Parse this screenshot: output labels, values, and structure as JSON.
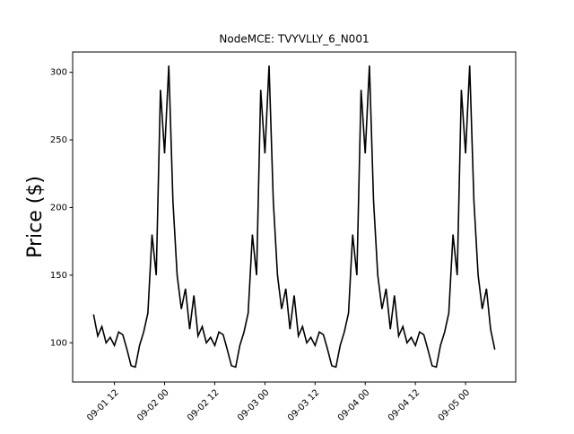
{
  "chart_data": {
    "type": "line",
    "title": "NodeMCE: TVYVLLY_6_N001",
    "y_label": "Price ($)",
    "x": [
      "09-01 07",
      "09-01 08",
      "09-01 09",
      "09-01 10",
      "09-01 11",
      "09-01 12",
      "09-01 13",
      "09-01 14",
      "09-01 15",
      "09-01 16",
      "09-01 17",
      "09-01 18",
      "09-01 19",
      "09-01 20",
      "09-01 21",
      "09-01 22",
      "09-01 23",
      "09-02 00",
      "09-02 01",
      "09-02 02",
      "09-02 03",
      "09-02 04",
      "09-02 05",
      "09-02 06",
      "09-02 07",
      "09-02 08",
      "09-02 09",
      "09-02 10",
      "09-02 11",
      "09-02 12",
      "09-02 13",
      "09-02 14",
      "09-02 15",
      "09-02 16",
      "09-02 17",
      "09-02 18",
      "09-02 19",
      "09-02 20",
      "09-02 21",
      "09-02 22",
      "09-02 23",
      "09-03 00",
      "09-03 01",
      "09-03 02",
      "09-03 03",
      "09-03 04",
      "09-03 05",
      "09-03 06",
      "09-03 07",
      "09-03 08",
      "09-03 09",
      "09-03 10",
      "09-03 11",
      "09-03 12",
      "09-03 13",
      "09-03 14",
      "09-03 15",
      "09-03 16",
      "09-03 17",
      "09-03 18",
      "09-03 19",
      "09-03 20",
      "09-03 21",
      "09-03 22",
      "09-03 23",
      "09-04 00",
      "09-04 01",
      "09-04 02",
      "09-04 03",
      "09-04 04",
      "09-04 05",
      "09-04 06",
      "09-04 07",
      "09-04 08",
      "09-04 09",
      "09-04 10",
      "09-04 11",
      "09-04 12",
      "09-04 13",
      "09-04 14",
      "09-04 15",
      "09-04 16",
      "09-04 17",
      "09-04 18",
      "09-04 19",
      "09-04 20",
      "09-04 21",
      "09-04 22",
      "09-04 23",
      "09-05 00",
      "09-05 01",
      "09-05 02",
      "09-05 03",
      "09-05 04",
      "09-05 05",
      "09-05 06",
      "09-05 07"
    ],
    "series": [
      {
        "color": "#000000",
        "values": [
          121,
          105,
          112,
          100,
          104,
          98,
          108,
          106,
          95,
          83,
          82,
          98,
          108,
          122,
          180,
          150,
          287,
          240,
          305,
          205,
          150,
          125,
          140,
          110,
          135,
          105,
          112,
          100,
          104,
          98,
          108,
          106,
          95,
          83,
          82,
          98,
          108,
          122,
          180,
          150,
          287,
          240,
          305,
          205,
          150,
          125,
          140,
          110,
          135,
          105,
          112,
          100,
          104,
          98,
          108,
          106,
          95,
          83,
          82,
          98,
          108,
          122,
          180,
          150,
          287,
          240,
          305,
          205,
          150,
          125,
          140,
          110,
          135,
          105,
          112,
          100,
          104,
          98,
          108,
          106,
          95,
          83,
          82,
          98,
          108,
          122,
          180,
          150,
          287,
          240,
          305,
          205,
          150,
          125,
          140,
          110,
          95
        ]
      }
    ],
    "xlim": [
      "09-01 02",
      "09-05 12"
    ],
    "xticks": [
      "09-01 12",
      "09-02 00",
      "09-02 12",
      "09-03 00",
      "09-03 12",
      "09-04 00",
      "09-04 12",
      "09-05 00"
    ],
    "ylim": [
      71,
      315
    ],
    "yticks": [
      100,
      150,
      200,
      250,
      300
    ]
  }
}
